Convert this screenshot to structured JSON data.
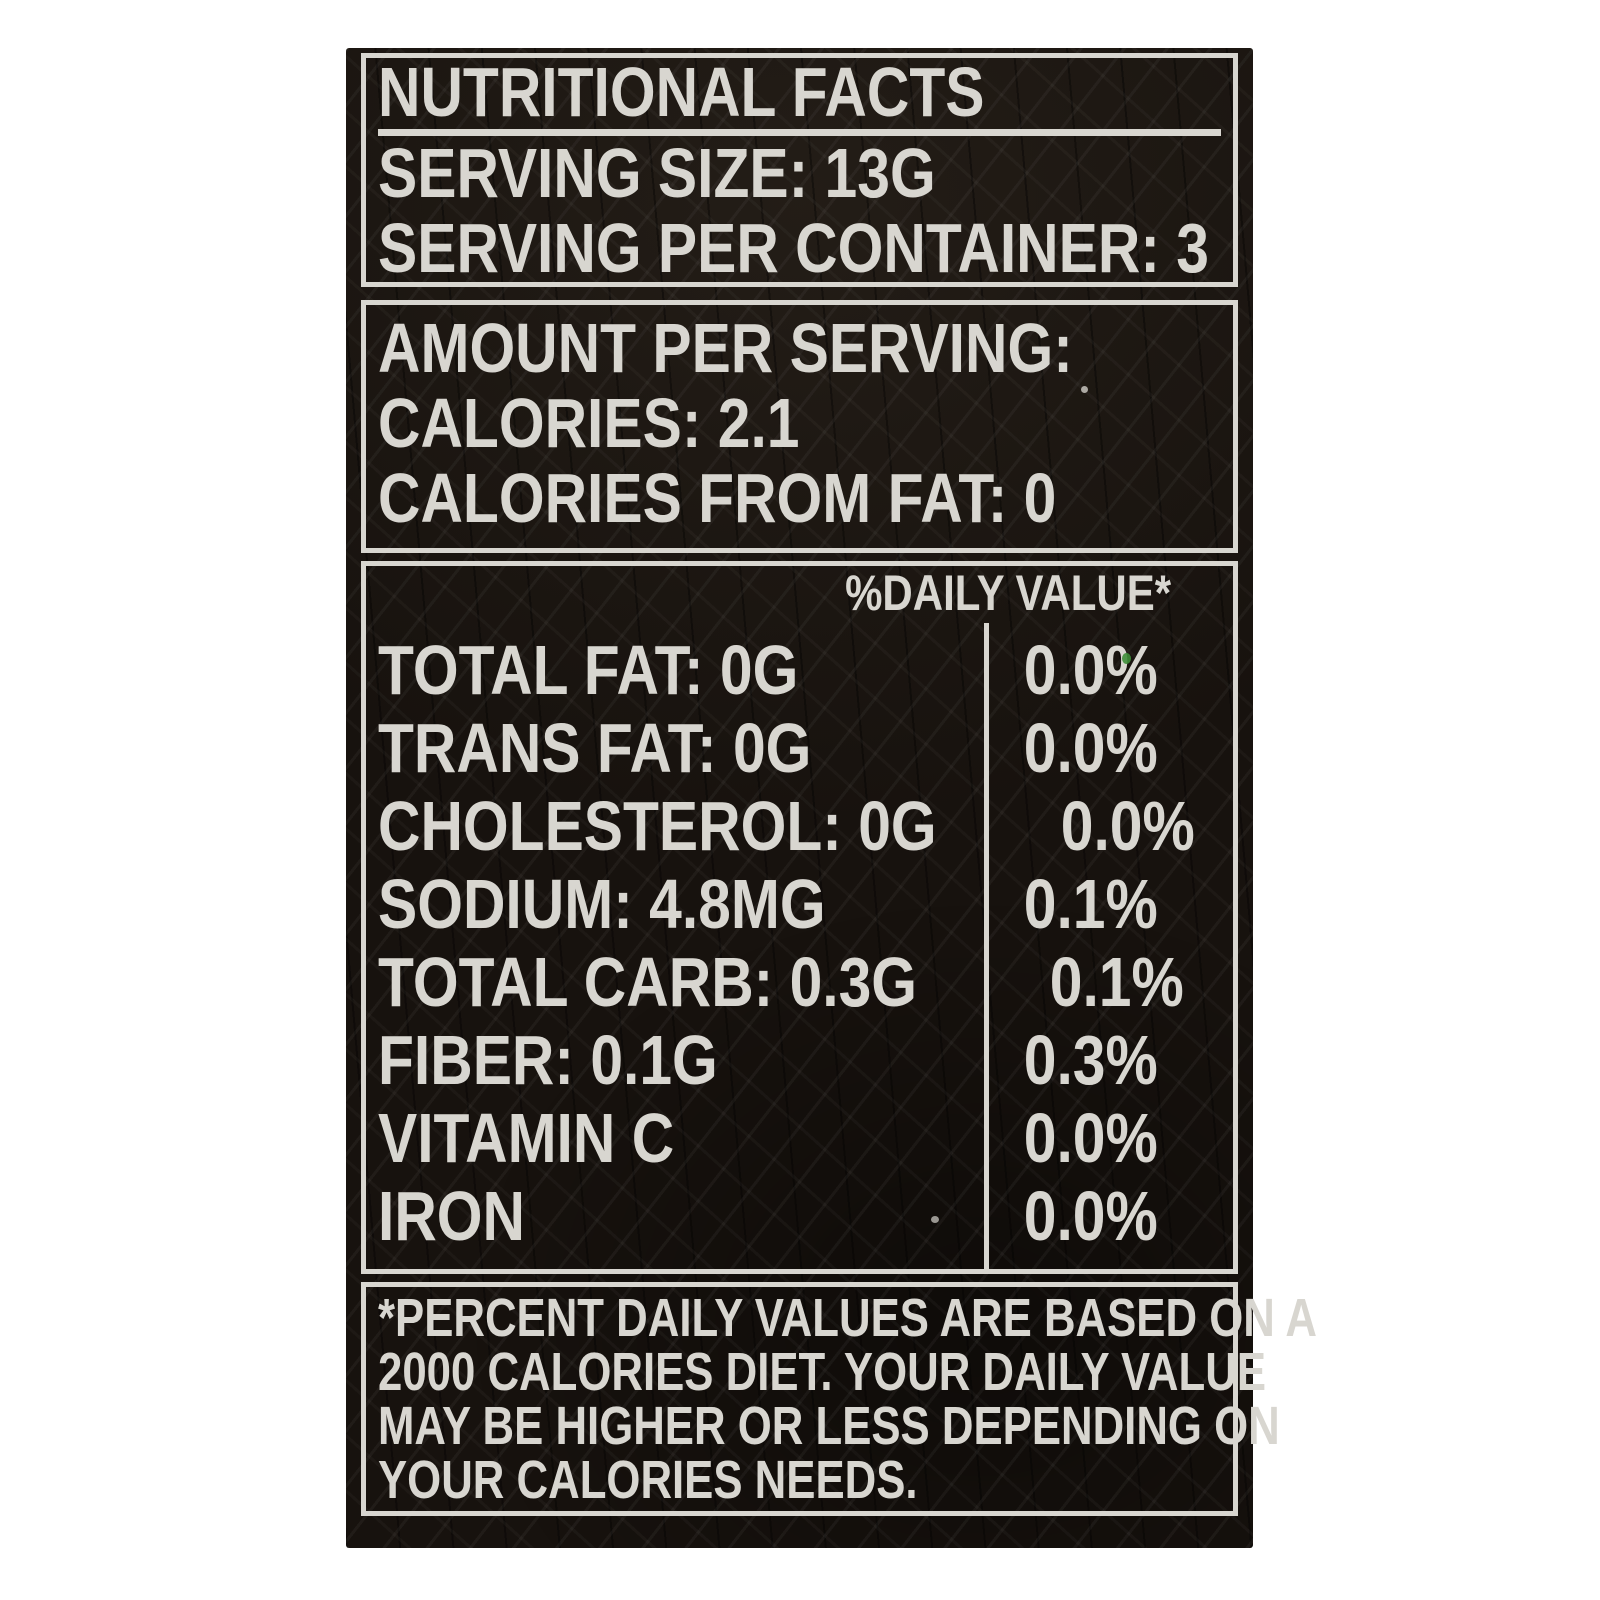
{
  "colors": {
    "page_bg": "#ffffff",
    "label_bg": "#17120e",
    "ink": "#d8d6d0"
  },
  "header_box": {
    "title": "NUTRITIONAL FACTS",
    "serving_size": "SERVING SIZE: 13G",
    "servings_per_container": "SERVING PER CONTAINER: 3"
  },
  "amount_box": {
    "heading": "AMOUNT PER SERVING:",
    "calories": "CALORIES: 2.1",
    "calories_from_fat": "CALORIES FROM FAT: 0"
  },
  "daily_value_box": {
    "column_header": "%DAILY VALUE*",
    "rows": [
      {
        "label": "TOTAL FAT: 0G",
        "value": "0.0%"
      },
      {
        "label": "TRANS FAT: 0G",
        "value": "0.0%"
      },
      {
        "label": "CHOLESTEROL: 0G",
        "value": "0.0%"
      },
      {
        "label": "SODIUM: 4.8MG",
        "value": "0.1%"
      },
      {
        "label": "TOTAL CARB: 0.3G",
        "value": "0.1%"
      },
      {
        "label": "FIBER: 0.1G",
        "value": "0.3%"
      },
      {
        "label": "VITAMIN C",
        "value": "0.0%"
      },
      {
        "label": "IRON",
        "value": "0.0%"
      }
    ]
  },
  "footnote_box": {
    "lines": [
      "*PERCENT DAILY VALUES ARE BASED ON A",
      "2000 CALORIES DIET. YOUR DAILY VALUE",
      "MAY BE HIGHER OR LESS DEPENDING ON",
      "YOUR CALORIES NEEDS."
    ]
  }
}
